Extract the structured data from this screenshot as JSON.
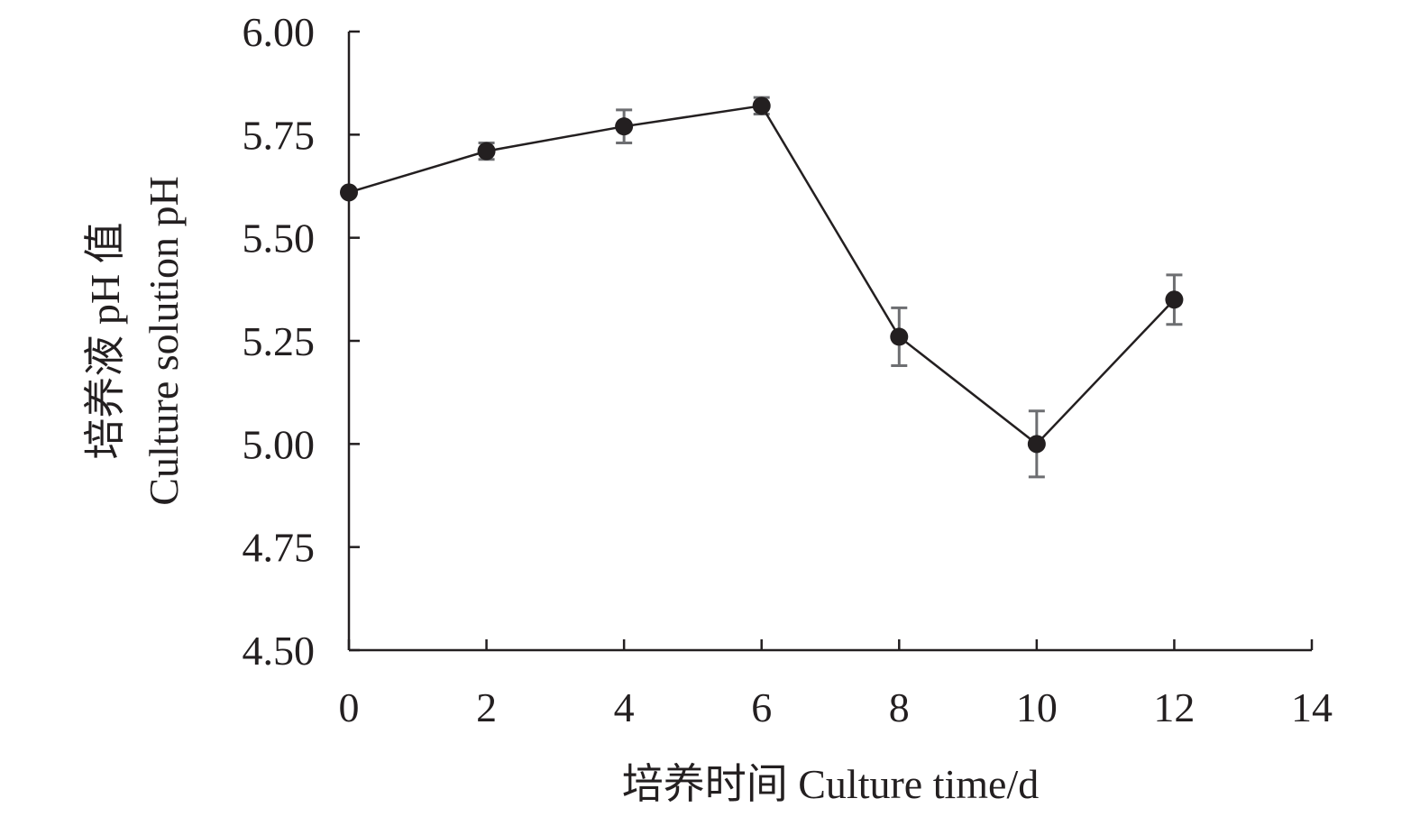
{
  "chart_data": {
    "type": "line",
    "title": "",
    "xlabel": "培养时间 Culture time/d",
    "ylabel_lines": [
      "培养液 pH 值",
      "Culture solution pH"
    ],
    "xlim": [
      0,
      14
    ],
    "ylim": [
      4.5,
      6.0
    ],
    "x_ticks": [
      0,
      2,
      4,
      6,
      8,
      10,
      12,
      14
    ],
    "x_tick_labels": [
      "0",
      "2",
      "4",
      "6",
      "8",
      "10",
      "12",
      "14"
    ],
    "y_ticks": [
      4.5,
      4.75,
      5.0,
      5.25,
      5.5,
      5.75,
      6.0
    ],
    "y_tick_labels": [
      "4.50",
      "4.75",
      "5.00",
      "5.25",
      "5.50",
      "5.75",
      "6.00"
    ],
    "grid": false,
    "legend": "none",
    "series": [
      {
        "x": [
          0,
          2,
          4,
          6,
          8,
          10,
          12
        ],
        "y": [
          5.61,
          5.71,
          5.77,
          5.82,
          5.26,
          5.0,
          5.35
        ],
        "error": [
          0.0,
          0.02,
          0.04,
          0.02,
          0.07,
          0.08,
          0.06
        ],
        "color": "#231f20",
        "error_color": "#6d6e71"
      }
    ]
  }
}
